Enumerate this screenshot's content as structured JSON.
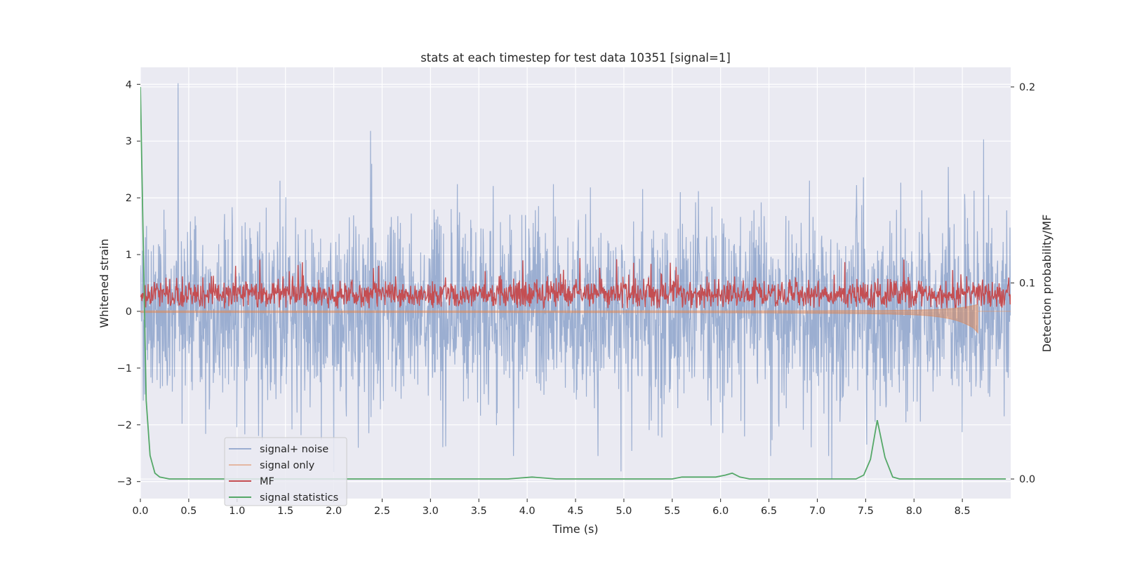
{
  "chart_data": {
    "type": "line",
    "title": "stats at each timestep for test data 10351 [signal=1]",
    "xlabel": "Time (s)",
    "ylabel": "Whitened strain",
    "ylabel_right": "Detection probability/MF",
    "xlim": [
      0.0,
      9.0
    ],
    "ylim": [
      -3.3,
      4.3
    ],
    "ylim_right": [
      -0.01,
      0.21
    ],
    "x_ticks": [
      "0.0",
      "0.5",
      "1.0",
      "1.5",
      "2.0",
      "2.5",
      "3.0",
      "3.5",
      "4.0",
      "4.5",
      "5.0",
      "5.5",
      "6.0",
      "6.5",
      "7.0",
      "7.5",
      "8.0",
      "8.5"
    ],
    "x_tick_values": [
      0.0,
      0.5,
      1.0,
      1.5,
      2.0,
      2.5,
      3.0,
      3.5,
      4.0,
      4.5,
      5.0,
      5.5,
      6.0,
      6.5,
      7.0,
      7.5,
      8.0,
      8.5
    ],
    "y_ticks": [
      "−3",
      "−2",
      "−1",
      "0",
      "1",
      "2",
      "3",
      "4"
    ],
    "y_tick_values": [
      -3,
      -2,
      -1,
      0,
      1,
      2,
      3,
      4
    ],
    "y_right_ticks": [
      "0.0",
      "0.1",
      "0.2"
    ],
    "y_right_tick_values": [
      0.0,
      0.1,
      0.2
    ],
    "grid": true,
    "legend_position": "lower-left",
    "series": [
      {
        "name": "signal+ noise",
        "color": "#4c72b0",
        "axis": "left",
        "style": "noise",
        "description_range": [
          -2.5,
          2.5
        ],
        "peaks": [
          {
            "x": 0.39,
            "y": 4.02
          },
          {
            "x": 2.38,
            "y": 3.18
          },
          {
            "x": 8.72,
            "y": 3.03
          },
          {
            "x": 4.97,
            "y": -2.82
          },
          {
            "x": 7.15,
            "y": -2.95
          },
          {
            "x": 2.0,
            "y": -2.83
          }
        ]
      },
      {
        "name": "signal only",
        "color": "#dd8452",
        "axis": "left",
        "style": "chirp",
        "chirp_end": 8.66,
        "chirp_min": -0.38
      },
      {
        "name": "MF",
        "color": "#c44e52",
        "axis": "left",
        "style": "band",
        "band": [
          0.05,
          0.6
        ]
      },
      {
        "name": "signal statistics",
        "color": "#55a868",
        "axis": "right",
        "style": "line",
        "x": [
          0.0,
          0.03,
          0.06,
          0.1,
          0.15,
          0.2,
          0.3,
          0.5,
          1.0,
          2.0,
          3.0,
          3.8,
          4.05,
          4.3,
          5.0,
          5.5,
          5.6,
          5.8,
          5.95,
          6.05,
          6.12,
          6.2,
          6.3,
          6.5,
          7.0,
          7.4,
          7.48,
          7.55,
          7.62,
          7.7,
          7.78,
          7.85,
          8.0,
          8.5,
          8.95
        ],
        "y": [
          0.2,
          0.12,
          0.04,
          0.012,
          0.003,
          0.001,
          0.0,
          0.0,
          0.0,
          0.0,
          0.0,
          0.0,
          0.001,
          0.0,
          0.0,
          0.0,
          0.001,
          0.001,
          0.001,
          0.002,
          0.003,
          0.001,
          0.0,
          0.0,
          0.0,
          0.0,
          0.002,
          0.01,
          0.03,
          0.011,
          0.001,
          0.0,
          0.0,
          0.0,
          0.0
        ]
      }
    ]
  }
}
